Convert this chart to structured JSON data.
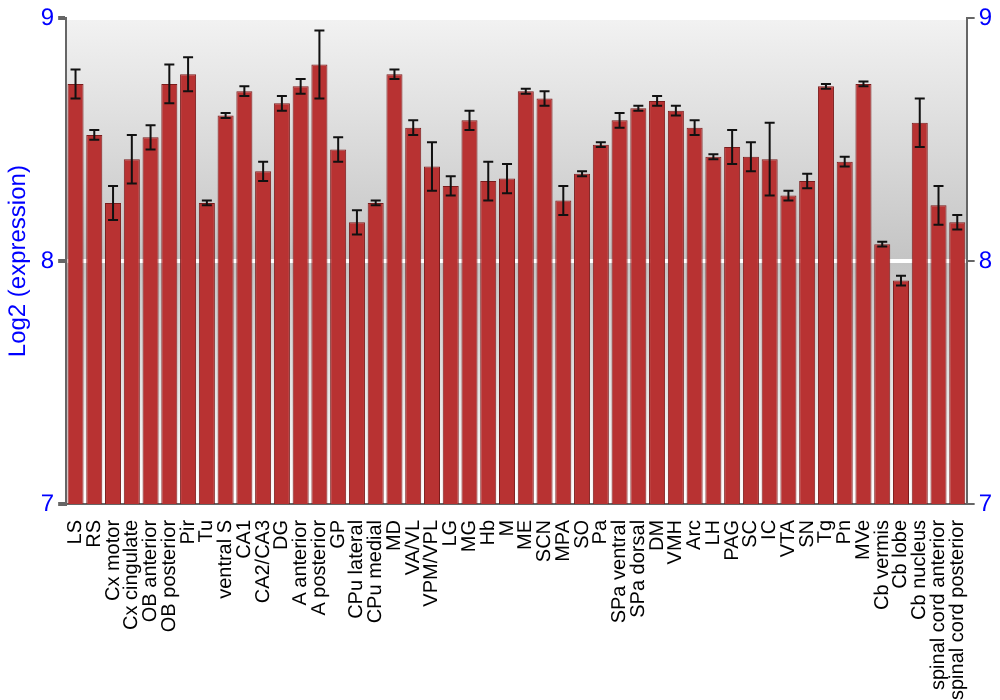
{
  "chart_data": {
    "type": "bar",
    "ylabel": "Log2 (expression)",
    "categories": [
      "LS",
      "RS",
      "Cx motor",
      "Cx cingulate",
      "OB anterior",
      "OB posterior",
      "Pir",
      "Tu",
      "ventral S",
      "CA1",
      "CA2/CA3",
      "DG",
      "A anterior",
      "A posterior",
      "GP",
      "CPu lateral",
      "CPu medial",
      "MD",
      "VA/VL",
      "VPM/VPL",
      "LG",
      "MG",
      "Hb",
      "M",
      "ME",
      "SCN",
      "MPA",
      "SO",
      "Pa",
      "SPa ventral",
      "SPa dorsal",
      "DM",
      "VMH",
      "Arc",
      "LH",
      "PAG",
      "SC",
      "IC",
      "VTA",
      "SN",
      "Tg",
      "Pn",
      "MVe",
      "Cb vermis",
      "Cb lobe",
      "Cb nucleus",
      "spinal cord anterior",
      "spinal cord posterior"
    ],
    "values": [
      8.73,
      8.52,
      8.24,
      8.42,
      8.51,
      8.73,
      8.77,
      8.24,
      8.6,
      8.7,
      8.37,
      8.65,
      8.72,
      8.81,
      8.46,
      8.16,
      8.24,
      8.77,
      8.55,
      8.39,
      8.31,
      8.58,
      8.33,
      8.34,
      8.7,
      8.67,
      8.25,
      8.36,
      8.48,
      8.58,
      8.63,
      8.66,
      8.62,
      8.55,
      8.43,
      8.47,
      8.43,
      8.42,
      8.27,
      8.33,
      8.72,
      8.41,
      8.73,
      8.07,
      7.92,
      8.57,
      8.23,
      8.16
    ],
    "errors": [
      0.06,
      0.02,
      0.07,
      0.1,
      0.05,
      0.08,
      0.07,
      0.01,
      0.01,
      0.02,
      0.04,
      0.03,
      0.03,
      0.14,
      0.05,
      0.05,
      0.01,
      0.02,
      0.03,
      0.1,
      0.04,
      0.04,
      0.08,
      0.06,
      0.01,
      0.03,
      0.06,
      0.01,
      0.01,
      0.03,
      0.01,
      0.02,
      0.02,
      0.03,
      0.01,
      0.07,
      0.06,
      0.15,
      0.02,
      0.03,
      0.01,
      0.02,
      0.01,
      0.01,
      0.02,
      0.1,
      0.08,
      0.03
    ],
    "color": "#b83232",
    "ylim": [
      7,
      9
    ],
    "yticks": [
      7,
      8,
      9
    ],
    "y2lim": [
      7,
      9
    ],
    "y2ticks": [
      7,
      8,
      9
    ],
    "grid": "y",
    "legend": false
  }
}
